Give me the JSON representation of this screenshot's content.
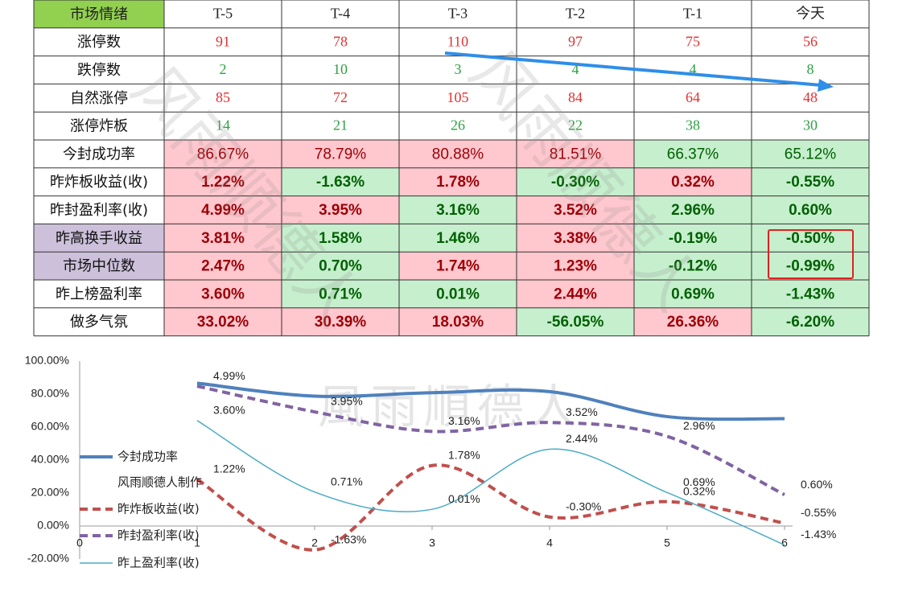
{
  "table": {
    "header": [
      "市场情绪",
      "T-5",
      "T-4",
      "T-3",
      "T-2",
      "T-1",
      "今天"
    ],
    "header_fill": "#92d050",
    "tone_text": {
      "#ffc7ce": "#9c0006",
      "#c6efce": "#006100"
    },
    "rows": [
      {
        "label": "涨停数",
        "cells": [
          "91",
          "78",
          "110",
          "97",
          "75",
          "56"
        ],
        "color": "#e03030"
      },
      {
        "label": "跌停数",
        "cells": [
          "2",
          "10",
          "3",
          "4",
          "4",
          "8"
        ],
        "color": "#2ea043"
      },
      {
        "label": "自然涨停",
        "cells": [
          "85",
          "72",
          "105",
          "84",
          "64",
          "48"
        ],
        "color": "#e03030"
      },
      {
        "label": "涨停炸板",
        "cells": [
          "14",
          "21",
          "26",
          "22",
          "38",
          "30"
        ],
        "color": "#2ea043"
      },
      {
        "label": "今封成功率",
        "cells": [
          "86.67%",
          "78.79%",
          "80.88%",
          "81.51%",
          "66.37%",
          "65.12%"
        ],
        "fills": [
          "#ffc7ce",
          "#ffc7ce",
          "#ffc7ce",
          "#ffc7ce",
          "#c6efce",
          "#c6efce"
        ],
        "bold": false
      },
      {
        "label": "昨炸板收益(收)",
        "cells": [
          "1.22%",
          "-1.63%",
          "1.78%",
          "-0.30%",
          "0.32%",
          "-0.55%"
        ],
        "fills": [
          "#ffc7ce",
          "#c6efce",
          "#ffc7ce",
          "#c6efce",
          "#ffc7ce",
          "#c6efce"
        ],
        "bold": true
      },
      {
        "label": "昨封盈利率(收)",
        "cells": [
          "4.99%",
          "3.95%",
          "3.16%",
          "3.52%",
          "2.96%",
          "0.60%"
        ],
        "fills": [
          "#ffc7ce",
          "#ffc7ce",
          "#c6efce",
          "#ffc7ce",
          "#c6efce",
          "#c6efce"
        ],
        "bold": true
      },
      {
        "label": "昨高换手收益",
        "label_fill": "#ccc0da",
        "cells": [
          "3.81%",
          "1.58%",
          "1.46%",
          "3.38%",
          "-0.19%",
          "-0.50%"
        ],
        "fills": [
          "#ffc7ce",
          "#c6efce",
          "#c6efce",
          "#ffc7ce",
          "#c6efce",
          "#c6efce"
        ],
        "bold": true
      },
      {
        "label": "市场中位数",
        "label_fill": "#ccc0da",
        "cells": [
          "2.47%",
          "0.70%",
          "1.74%",
          "1.23%",
          "-0.12%",
          "-0.99%"
        ],
        "fills": [
          "#ffc7ce",
          "#c6efce",
          "#ffc7ce",
          "#ffc7ce",
          "#c6efce",
          "#c6efce"
        ],
        "bold": true
      },
      {
        "label": "昨上榜盈利率",
        "cells": [
          "3.60%",
          "0.71%",
          "0.01%",
          "2.44%",
          "0.69%",
          "-1.43%"
        ],
        "fills": [
          "#ffc7ce",
          "#c6efce",
          "#c6efce",
          "#ffc7ce",
          "#c6efce",
          "#c6efce"
        ],
        "bold": true
      },
      {
        "label": "做多气氛",
        "cells": [
          "33.02%",
          "30.39%",
          "18.03%",
          "-56.05%",
          "26.36%",
          "-6.20%"
        ],
        "fills": [
          "#ffc7ce",
          "#ffc7ce",
          "#ffc7ce",
          "#c6efce",
          "#ffc7ce",
          "#c6efce"
        ],
        "bold": true
      }
    ]
  },
  "watermark": "风雨顺德人",
  "chart_data": {
    "type": "line",
    "watermark": "風雨順德人",
    "x": [
      1,
      2,
      3,
      4,
      5,
      6
    ],
    "xlim": [
      0,
      6
    ],
    "xticks": [
      0,
      1,
      2,
      3,
      4,
      5,
      6
    ],
    "ylim": [
      -20,
      100
    ],
    "yticks": [
      {
        "value": -20,
        "label": "-20.00%"
      },
      {
        "value": 0,
        "label": "0.00%"
      },
      {
        "value": 20,
        "label": "20.00%"
      },
      {
        "value": 40,
        "label": "40.00%"
      },
      {
        "value": 60,
        "label": "60.00%"
      },
      {
        "value": 80,
        "label": "80.00%"
      },
      {
        "value": 100,
        "label": "100.00%"
      }
    ],
    "y2lim": [
      -2,
      6
    ],
    "legend_note": "风雨顺德人制作",
    "series": [
      {
        "name": "今封成功率",
        "color": "#4f81bd",
        "width": 4,
        "dash": false,
        "values": [
          86.67,
          78.79,
          80.88,
          81.51,
          66.37,
          65.12
        ]
      },
      {
        "name": "昨炸板收益(收)",
        "color": "#c0504d",
        "width": 4,
        "dash": true,
        "axis": "y2",
        "values": [
          1.22,
          -1.63,
          1.78,
          -0.3,
          0.32,
          -0.55
        ],
        "value_labels": [
          "1.22%",
          "-1.63%",
          "1.78%",
          "-0.30%",
          "0.32%",
          "-0.55%"
        ]
      },
      {
        "name": "昨封盈利率(收)",
        "color": "#8064a2",
        "width": 4,
        "dash": true,
        "axis": "y2",
        "values": [
          4.99,
          3.95,
          3.16,
          3.52,
          2.96,
          0.6
        ],
        "value_labels": [
          "4.99%",
          "3.95%",
          "3.16%",
          "3.52%",
          "2.96%",
          "0.60%"
        ]
      },
      {
        "name": "昨上盈利率(收)",
        "color": "#4bacc6",
        "width": 1.5,
        "dash": false,
        "axis": "y2",
        "values": [
          3.6,
          0.71,
          0.01,
          2.44,
          0.69,
          -1.43
        ],
        "value_labels": [
          "3.60%",
          "0.71%",
          "0.01%",
          "2.44%",
          "0.69%",
          "-1.43%"
        ]
      }
    ]
  }
}
